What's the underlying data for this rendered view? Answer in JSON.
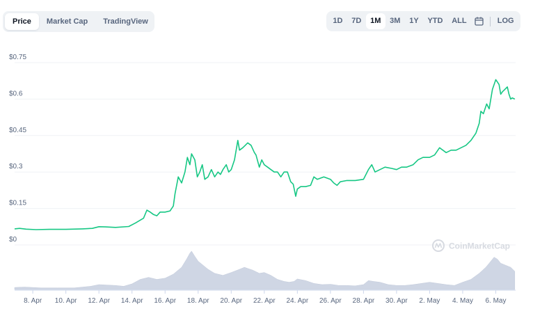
{
  "tabs": [
    {
      "label": "Price",
      "active": true
    },
    {
      "label": "Market Cap",
      "active": false
    },
    {
      "label": "TradingView",
      "active": false
    }
  ],
  "ranges": [
    {
      "label": "1D",
      "active": false
    },
    {
      "label": "7D",
      "active": false
    },
    {
      "label": "1M",
      "active": true
    },
    {
      "label": "3M",
      "active": false
    },
    {
      "label": "1Y",
      "active": false
    },
    {
      "label": "YTD",
      "active": false
    },
    {
      "label": "ALL",
      "active": false
    }
  ],
  "calendar_icon": "calendar-icon",
  "log_label": "LOG",
  "watermark": "CoinMarketCap",
  "colors": {
    "line": "#16c784",
    "volume": "#cfd6e4",
    "grid": "#eff2f5",
    "axis_text": "#58667e"
  },
  "chart_data": {
    "type": "line",
    "title": "",
    "xlabel": "",
    "ylabel": "",
    "ylim": [
      0,
      0.75
    ],
    "y_ticks": [
      "$0",
      "$0.15",
      "$0.3",
      "$0.45",
      "$0.6",
      "$0.75"
    ],
    "y_tick_values": [
      0,
      0.15,
      0.3,
      0.45,
      0.6,
      0.75
    ],
    "x_ticks": [
      "8. Apr",
      "10. Apr",
      "12. Apr",
      "14. Apr",
      "16. Apr",
      "18. Apr",
      "20. Apr",
      "22. Apr",
      "24. Apr",
      "26. Apr",
      "28. Apr",
      "30. Apr",
      "2. May",
      "4. May",
      "6. May"
    ],
    "x_tick_days": [
      1,
      3,
      5,
      7,
      9,
      11,
      13,
      15,
      17,
      19,
      21,
      23,
      25,
      27,
      29
    ],
    "x_range_days": [
      -0.1,
      30.2
    ],
    "grid": true,
    "price": [
      [
        -0.1,
        0.066
      ],
      [
        0.2,
        0.068
      ],
      [
        0.6,
        0.065
      ],
      [
        1.2,
        0.063
      ],
      [
        2.0,
        0.064
      ],
      [
        3.0,
        0.064
      ],
      [
        4.0,
        0.066
      ],
      [
        4.6,
        0.068
      ],
      [
        5.0,
        0.075
      ],
      [
        5.4,
        0.074
      ],
      [
        6.0,
        0.072
      ],
      [
        6.8,
        0.076
      ],
      [
        7.2,
        0.09
      ],
      [
        7.7,
        0.11
      ],
      [
        7.9,
        0.143
      ],
      [
        8.1,
        0.135
      ],
      [
        8.3,
        0.125
      ],
      [
        8.5,
        0.12
      ],
      [
        8.7,
        0.135
      ],
      [
        9.0,
        0.135
      ],
      [
        9.3,
        0.14
      ],
      [
        9.5,
        0.16
      ],
      [
        9.6,
        0.21
      ],
      [
        9.8,
        0.28
      ],
      [
        10.0,
        0.255
      ],
      [
        10.2,
        0.3
      ],
      [
        10.35,
        0.36
      ],
      [
        10.5,
        0.33
      ],
      [
        10.6,
        0.375
      ],
      [
        10.8,
        0.35
      ],
      [
        10.95,
        0.28
      ],
      [
        11.1,
        0.3
      ],
      [
        11.25,
        0.33
      ],
      [
        11.4,
        0.27
      ],
      [
        11.6,
        0.28
      ],
      [
        11.8,
        0.31
      ],
      [
        12.0,
        0.28
      ],
      [
        12.2,
        0.3
      ],
      [
        12.35,
        0.29
      ],
      [
        12.5,
        0.31
      ],
      [
        12.7,
        0.33
      ],
      [
        12.85,
        0.3
      ],
      [
        13.0,
        0.31
      ],
      [
        13.2,
        0.35
      ],
      [
        13.4,
        0.43
      ],
      [
        13.5,
        0.39
      ],
      [
        13.7,
        0.4
      ],
      [
        13.85,
        0.41
      ],
      [
        14.0,
        0.42
      ],
      [
        14.2,
        0.41
      ],
      [
        14.4,
        0.38
      ],
      [
        14.5,
        0.37
      ],
      [
        14.7,
        0.32
      ],
      [
        14.85,
        0.35
      ],
      [
        15.0,
        0.33
      ],
      [
        15.2,
        0.32
      ],
      [
        15.4,
        0.31
      ],
      [
        15.6,
        0.3
      ],
      [
        15.8,
        0.3
      ],
      [
        16.0,
        0.28
      ],
      [
        16.2,
        0.3
      ],
      [
        16.4,
        0.3
      ],
      [
        16.6,
        0.26
      ],
      [
        16.75,
        0.25
      ],
      [
        16.9,
        0.2
      ],
      [
        17.0,
        0.23
      ],
      [
        17.2,
        0.24
      ],
      [
        17.5,
        0.24
      ],
      [
        17.8,
        0.245
      ],
      [
        18.0,
        0.28
      ],
      [
        18.2,
        0.27
      ],
      [
        18.6,
        0.28
      ],
      [
        19.0,
        0.27
      ],
      [
        19.2,
        0.255
      ],
      [
        19.4,
        0.245
      ],
      [
        19.6,
        0.26
      ],
      [
        20.0,
        0.265
      ],
      [
        20.5,
        0.265
      ],
      [
        21.0,
        0.27
      ],
      [
        21.3,
        0.31
      ],
      [
        21.5,
        0.33
      ],
      [
        21.7,
        0.3
      ],
      [
        22.0,
        0.31
      ],
      [
        22.3,
        0.32
      ],
      [
        22.7,
        0.315
      ],
      [
        23.0,
        0.31
      ],
      [
        23.3,
        0.32
      ],
      [
        23.6,
        0.32
      ],
      [
        24.0,
        0.33
      ],
      [
        24.3,
        0.35
      ],
      [
        24.6,
        0.36
      ],
      [
        25.0,
        0.36
      ],
      [
        25.3,
        0.37
      ],
      [
        25.6,
        0.4
      ],
      [
        26.0,
        0.38
      ],
      [
        26.3,
        0.39
      ],
      [
        26.6,
        0.39
      ],
      [
        26.9,
        0.4
      ],
      [
        27.2,
        0.41
      ],
      [
        27.5,
        0.43
      ],
      [
        27.8,
        0.46
      ],
      [
        28.0,
        0.5
      ],
      [
        28.1,
        0.55
      ],
      [
        28.25,
        0.54
      ],
      [
        28.45,
        0.58
      ],
      [
        28.6,
        0.56
      ],
      [
        28.8,
        0.64
      ],
      [
        29.0,
        0.68
      ],
      [
        29.1,
        0.67
      ],
      [
        29.2,
        0.66
      ],
      [
        29.3,
        0.62
      ],
      [
        29.4,
        0.63
      ],
      [
        29.55,
        0.64
      ],
      [
        29.7,
        0.65
      ],
      [
        29.8,
        0.62
      ],
      [
        29.9,
        0.6
      ],
      [
        30.0,
        0.605
      ],
      [
        30.15,
        0.6
      ]
    ],
    "volume": [
      [
        -0.1,
        0.05
      ],
      [
        0.5,
        0.06
      ],
      [
        1.5,
        0.04
      ],
      [
        2.5,
        0.04
      ],
      [
        3.5,
        0.04
      ],
      [
        4.5,
        0.08
      ],
      [
        5.0,
        0.12
      ],
      [
        6.0,
        0.1
      ],
      [
        6.5,
        0.08
      ],
      [
        7.0,
        0.14
      ],
      [
        7.5,
        0.25
      ],
      [
        8.0,
        0.3
      ],
      [
        8.5,
        0.25
      ],
      [
        9.0,
        0.28
      ],
      [
        9.5,
        0.38
      ],
      [
        10.0,
        0.55
      ],
      [
        10.3,
        0.75
      ],
      [
        10.5,
        0.9
      ],
      [
        10.6,
        0.95
      ],
      [
        10.8,
        0.82
      ],
      [
        11.0,
        0.7
      ],
      [
        11.3,
        0.6
      ],
      [
        11.6,
        0.5
      ],
      [
        12.0,
        0.4
      ],
      [
        12.5,
        0.35
      ],
      [
        13.0,
        0.42
      ],
      [
        13.5,
        0.5
      ],
      [
        13.8,
        0.55
      ],
      [
        14.0,
        0.52
      ],
      [
        14.3,
        0.48
      ],
      [
        14.7,
        0.4
      ],
      [
        15.0,
        0.42
      ],
      [
        15.4,
        0.35
      ],
      [
        15.8,
        0.25
      ],
      [
        16.2,
        0.2
      ],
      [
        16.5,
        0.18
      ],
      [
        16.8,
        0.2
      ],
      [
        17.0,
        0.26
      ],
      [
        17.5,
        0.22
      ],
      [
        18.0,
        0.15
      ],
      [
        18.5,
        0.12
      ],
      [
        19.0,
        0.13
      ],
      [
        19.5,
        0.1
      ],
      [
        20.0,
        0.1
      ],
      [
        20.5,
        0.09
      ],
      [
        21.0,
        0.12
      ],
      [
        21.3,
        0.22
      ],
      [
        21.6,
        0.2
      ],
      [
        22.0,
        0.18
      ],
      [
        22.5,
        0.12
      ],
      [
        23.0,
        0.1
      ],
      [
        23.5,
        0.1
      ],
      [
        24.0,
        0.12
      ],
      [
        24.5,
        0.15
      ],
      [
        25.0,
        0.18
      ],
      [
        25.5,
        0.15
      ],
      [
        26.0,
        0.12
      ],
      [
        26.5,
        0.1
      ],
      [
        27.0,
        0.18
      ],
      [
        27.5,
        0.25
      ],
      [
        28.0,
        0.4
      ],
      [
        28.4,
        0.55
      ],
      [
        28.7,
        0.7
      ],
      [
        28.9,
        0.8
      ],
      [
        29.1,
        0.75
      ],
      [
        29.3,
        0.65
      ],
      [
        29.6,
        0.6
      ],
      [
        29.9,
        0.55
      ],
      [
        30.15,
        0.45
      ]
    ]
  }
}
